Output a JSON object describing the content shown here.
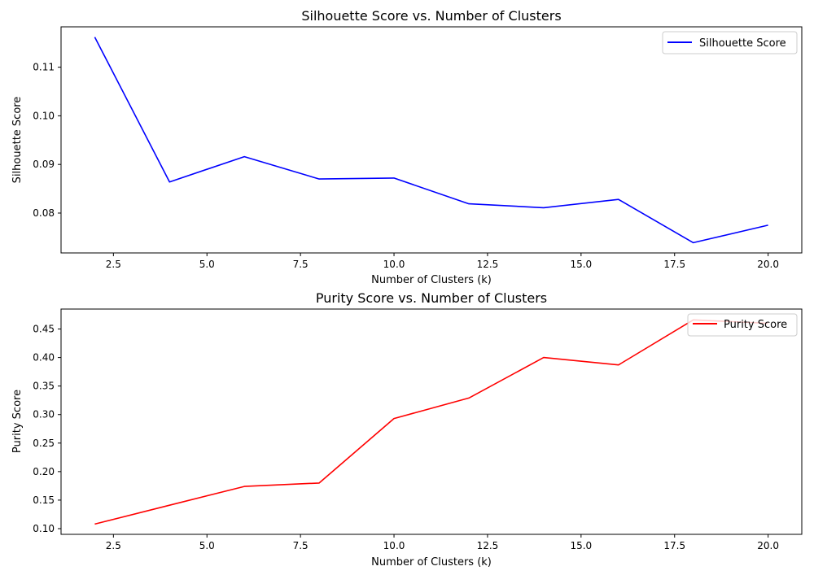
{
  "chart_data": [
    {
      "type": "line",
      "title": "Silhouette Score vs. Number of Clusters",
      "xlabel": "Number of Clusters (k)",
      "ylabel": "Silhouette Score",
      "ylabel_color": "#0000ff",
      "x": [
        2,
        4,
        6,
        8,
        10,
        12,
        14,
        16,
        18,
        20
      ],
      "series": [
        {
          "name": "Silhouette Score",
          "color": "#0000ff",
          "values": [
            0.1162,
            0.0864,
            0.0916,
            0.087,
            0.0872,
            0.0819,
            0.0811,
            0.0828,
            0.0739,
            0.0775
          ]
        }
      ],
      "xlim": [
        1.1,
        20.9
      ],
      "ylim": [
        0.0718,
        0.1183
      ],
      "xticks": [
        2.5,
        5.0,
        7.5,
        10.0,
        12.5,
        15.0,
        17.5,
        20.0
      ],
      "xtick_labels": [
        "2.5",
        "5.0",
        "7.5",
        "10.0",
        "12.5",
        "15.0",
        "17.5",
        "20.0"
      ],
      "yticks": [
        0.08,
        0.09,
        0.1,
        0.11
      ],
      "ytick_labels": [
        "0.08",
        "0.09",
        "0.10",
        "0.11"
      ],
      "legend": "top-right",
      "grid": false
    },
    {
      "type": "line",
      "title": "Purity Score vs. Number of Clusters",
      "xlabel": "Number of Clusters (k)",
      "ylabel": "Purity Score",
      "ylabel_color": "#ff0000",
      "x": [
        2,
        4,
        6,
        8,
        10,
        12,
        14,
        16,
        18,
        20
      ],
      "series": [
        {
          "name": "Purity Score",
          "color": "#ff0000",
          "values": [
            0.108,
            0.141,
            0.174,
            0.18,
            0.293,
            0.329,
            0.4,
            0.387,
            0.466,
            0.46
          ]
        }
      ],
      "xlim": [
        1.1,
        20.9
      ],
      "ylim": [
        0.09,
        0.485
      ],
      "xticks": [
        2.5,
        5.0,
        7.5,
        10.0,
        12.5,
        15.0,
        17.5,
        20.0
      ],
      "xtick_labels": [
        "2.5",
        "5.0",
        "7.5",
        "10.0",
        "12.5",
        "15.0",
        "17.5",
        "20.0"
      ],
      "yticks": [
        0.1,
        0.15,
        0.2,
        0.25,
        0.3,
        0.35,
        0.4,
        0.45
      ],
      "ytick_labels": [
        "0.10",
        "0.15",
        "0.20",
        "0.25",
        "0.30",
        "0.35",
        "0.40",
        "0.45"
      ],
      "legend": "top-right",
      "grid": false
    }
  ]
}
